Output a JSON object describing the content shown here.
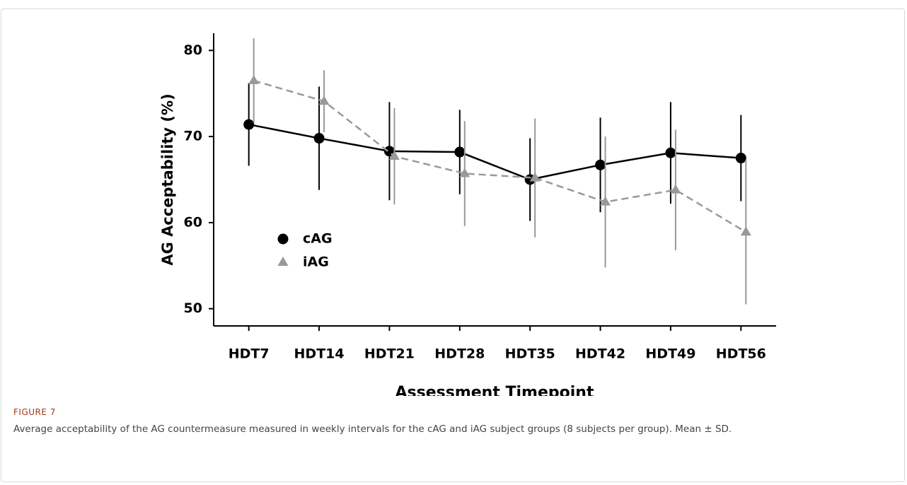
{
  "chart_data": {
    "type": "line",
    "y_label": "AG Acceptability (%)",
    "x_label": "Assessment Timepoint",
    "categories": [
      "HDT7",
      "HDT14",
      "HDT21",
      "HDT28",
      "HDT35",
      "HDT42",
      "HDT49",
      "HDT56"
    ],
    "series": [
      {
        "name": "cAG",
        "color": "#000000",
        "marker": "circle",
        "linestyle": "solid",
        "values": [
          71.4,
          69.8,
          68.3,
          68.2,
          65.0,
          66.7,
          68.1,
          67.5
        ],
        "errors": [
          4.8,
          6.0,
          5.7,
          4.9,
          4.8,
          5.5,
          5.9,
          5.0
        ]
      },
      {
        "name": "iAG",
        "color": "#999999",
        "marker": "triangle",
        "linestyle": "dashed",
        "values": [
          76.5,
          74.1,
          67.7,
          65.7,
          65.2,
          62.4,
          63.8,
          58.9
        ],
        "errors": [
          4.9,
          3.6,
          5.6,
          6.1,
          6.9,
          7.6,
          7.0,
          8.4
        ]
      }
    ],
    "ylim": [
      48,
      82
    ],
    "yticks": [
      50,
      60,
      70,
      80
    ],
    "grid": false,
    "legend": "lower left"
  },
  "figure": {
    "label": "FIGURE 7",
    "caption": "Average acceptability of the AG countermeasure measured in weekly intervals for the cAG and iAG subject groups (8 subjects per group). Mean ± SD."
  }
}
